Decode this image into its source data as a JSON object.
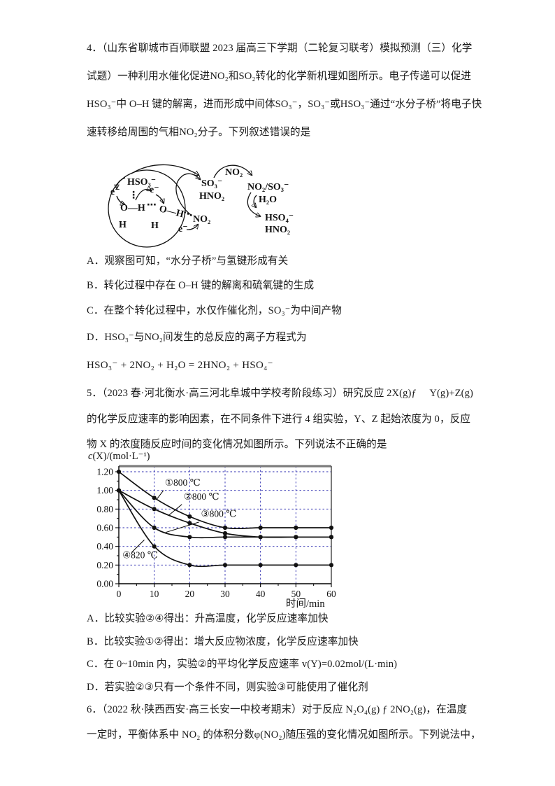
{
  "page": {
    "background": "#ffffff",
    "text_color": "#1a1a1a"
  },
  "q4": {
    "lines": [
      "4．（山东省聊城市百师联盟 2023 届高三下学期（二轮复习联考）模拟预测（三）化学",
      "试题）一种利用水催化促进NO₂和SO₂转化的化学新机理如图所示。电子传递可以促进",
      "HSO₃⁻中 O–H 键的解离，进而形成中间体SO₃⁻，SO₃⁻或HSO₃⁻通过“水分子桥”将电子快",
      "速转移给周围的气相NO₂分子。下列叙述错误的是"
    ],
    "diagram": {
      "hso3": "HSO₃⁻",
      "dots_v": "⋮",
      "e1": "e⁻",
      "e2": "e⁻",
      "e3": "e⁻",
      "oh_left": "O—H",
      "dots_mid": "⋯",
      "oh_right": "O—H",
      "h1": "H",
      "h2": "H",
      "dots_no2": "⋯",
      "no2_a": "NO₂",
      "so3": "SO₃⁻",
      "hno2_a": "HNO₂",
      "no2_top": "NO₂",
      "no2so3": "NO₂/SO₃⁻",
      "h2o": "H₂O",
      "hso4": "HSO₄⁻",
      "hno2_b": "HNO₂"
    },
    "options": [
      "A．观察图可知，“水分子桥”与氢键形成有关",
      "B．转化过程中存在 O–H 键的解离和硫氧键的生成",
      "C．在整个转化过程中，水仅作催化剂，SO₃⁻为中间产物",
      "D．HSO₃⁻与NO₂间发生的总反应的离子方程式为"
    ],
    "equation": "HSO₃⁻ + 2NO₂ + H₂O = 2HNO₂ + HSO₄⁻"
  },
  "q5": {
    "lines": [
      "5．（2023 春·河北衡水·高三河北阜城中学校考阶段练习）研究反应 2X(g)ƒ 　Y(g)+Z(g)",
      "的化学反应速率的影响因素，在不同条件下进行 4 组实验，Y、Z 起始浓度为 0，反应",
      "物 X 的浓度随反应时间的变化情况如图所示。下列说法不正确的是"
    ],
    "options": [
      "A．比较实验②④得出：升高温度，化学反应速率加快",
      "B．比较实验①②得出：增大反应物浓度，化学反应速率加快",
      "C．在 0~10min 内，实验②的平均化学反应速率 v(Y)=0.02mol/(L·min)",
      "D．若实验②③只有一个条件不同，则实验③可能使用了催化剂"
    ]
  },
  "q6": {
    "lines": [
      "6．（2022 秋·陕西西安·高三长安一中校考期末）对于反应 N₂O₄(g) ƒ 2NO₂(g)，在温度",
      "一定时，平衡体系中 NO₂ 的体积分数φ(NO₂)随压强的变化情况如图所示。下列说法中，"
    ]
  },
  "chart_data": {
    "type": "line",
    "title": "",
    "xlabel": "时间/min",
    "ylabel": "c(X)/(mol·L⁻¹)",
    "x": [
      0,
      10,
      20,
      30,
      40,
      50,
      60
    ],
    "xticks": [
      0,
      10,
      20,
      30,
      40,
      50,
      60
    ],
    "yticks": [
      0.0,
      0.2,
      0.4,
      0.6,
      0.8,
      1.0,
      1.2
    ],
    "xlim": [
      0,
      60
    ],
    "ylim": [
      0,
      1.2
    ],
    "grid": true,
    "grid_color": "#2b2bb0",
    "line_color": "#111111",
    "legend_position": "inline-annotations",
    "series": [
      {
        "name": "①800 ℃",
        "values": [
          1.2,
          0.92,
          0.72,
          0.6,
          0.6,
          0.6,
          0.6
        ]
      },
      {
        "name": "②800 ℃",
        "values": [
          1.0,
          0.8,
          0.65,
          0.54,
          0.5,
          0.5,
          0.5
        ]
      },
      {
        "name": "③800 ℃",
        "values": [
          1.0,
          0.6,
          0.5,
          0.5,
          0.5,
          0.5,
          0.5
        ]
      },
      {
        "name": "④820 ℃",
        "values": [
          1.0,
          0.4,
          0.2,
          0.2,
          0.2,
          0.2,
          0.2
        ]
      }
    ],
    "annotations": [
      {
        "text": "①800 ℃",
        "label_xy": [
          13.0,
          1.05
        ],
        "leader": [
          [
            12.6,
            1.0
          ],
          [
            10.6,
            0.9
          ]
        ]
      },
      {
        "text": "②800 ℃",
        "label_xy": [
          18.3,
          0.9
        ],
        "leader": [
          [
            17.8,
            0.85
          ],
          [
            14.0,
            0.73
          ]
        ]
      },
      {
        "text": "③800 ℃",
        "label_xy": [
          23.2,
          0.715
        ],
        "leader": [
          [
            22.6,
            0.66
          ],
          [
            13.2,
            0.55
          ]
        ]
      },
      {
        "text": "④820 ℃",
        "label_xy": [
          1.0,
          0.275
        ],
        "leader": [
          [
            3.6,
            0.335
          ],
          [
            7.2,
            0.47
          ]
        ]
      }
    ]
  }
}
